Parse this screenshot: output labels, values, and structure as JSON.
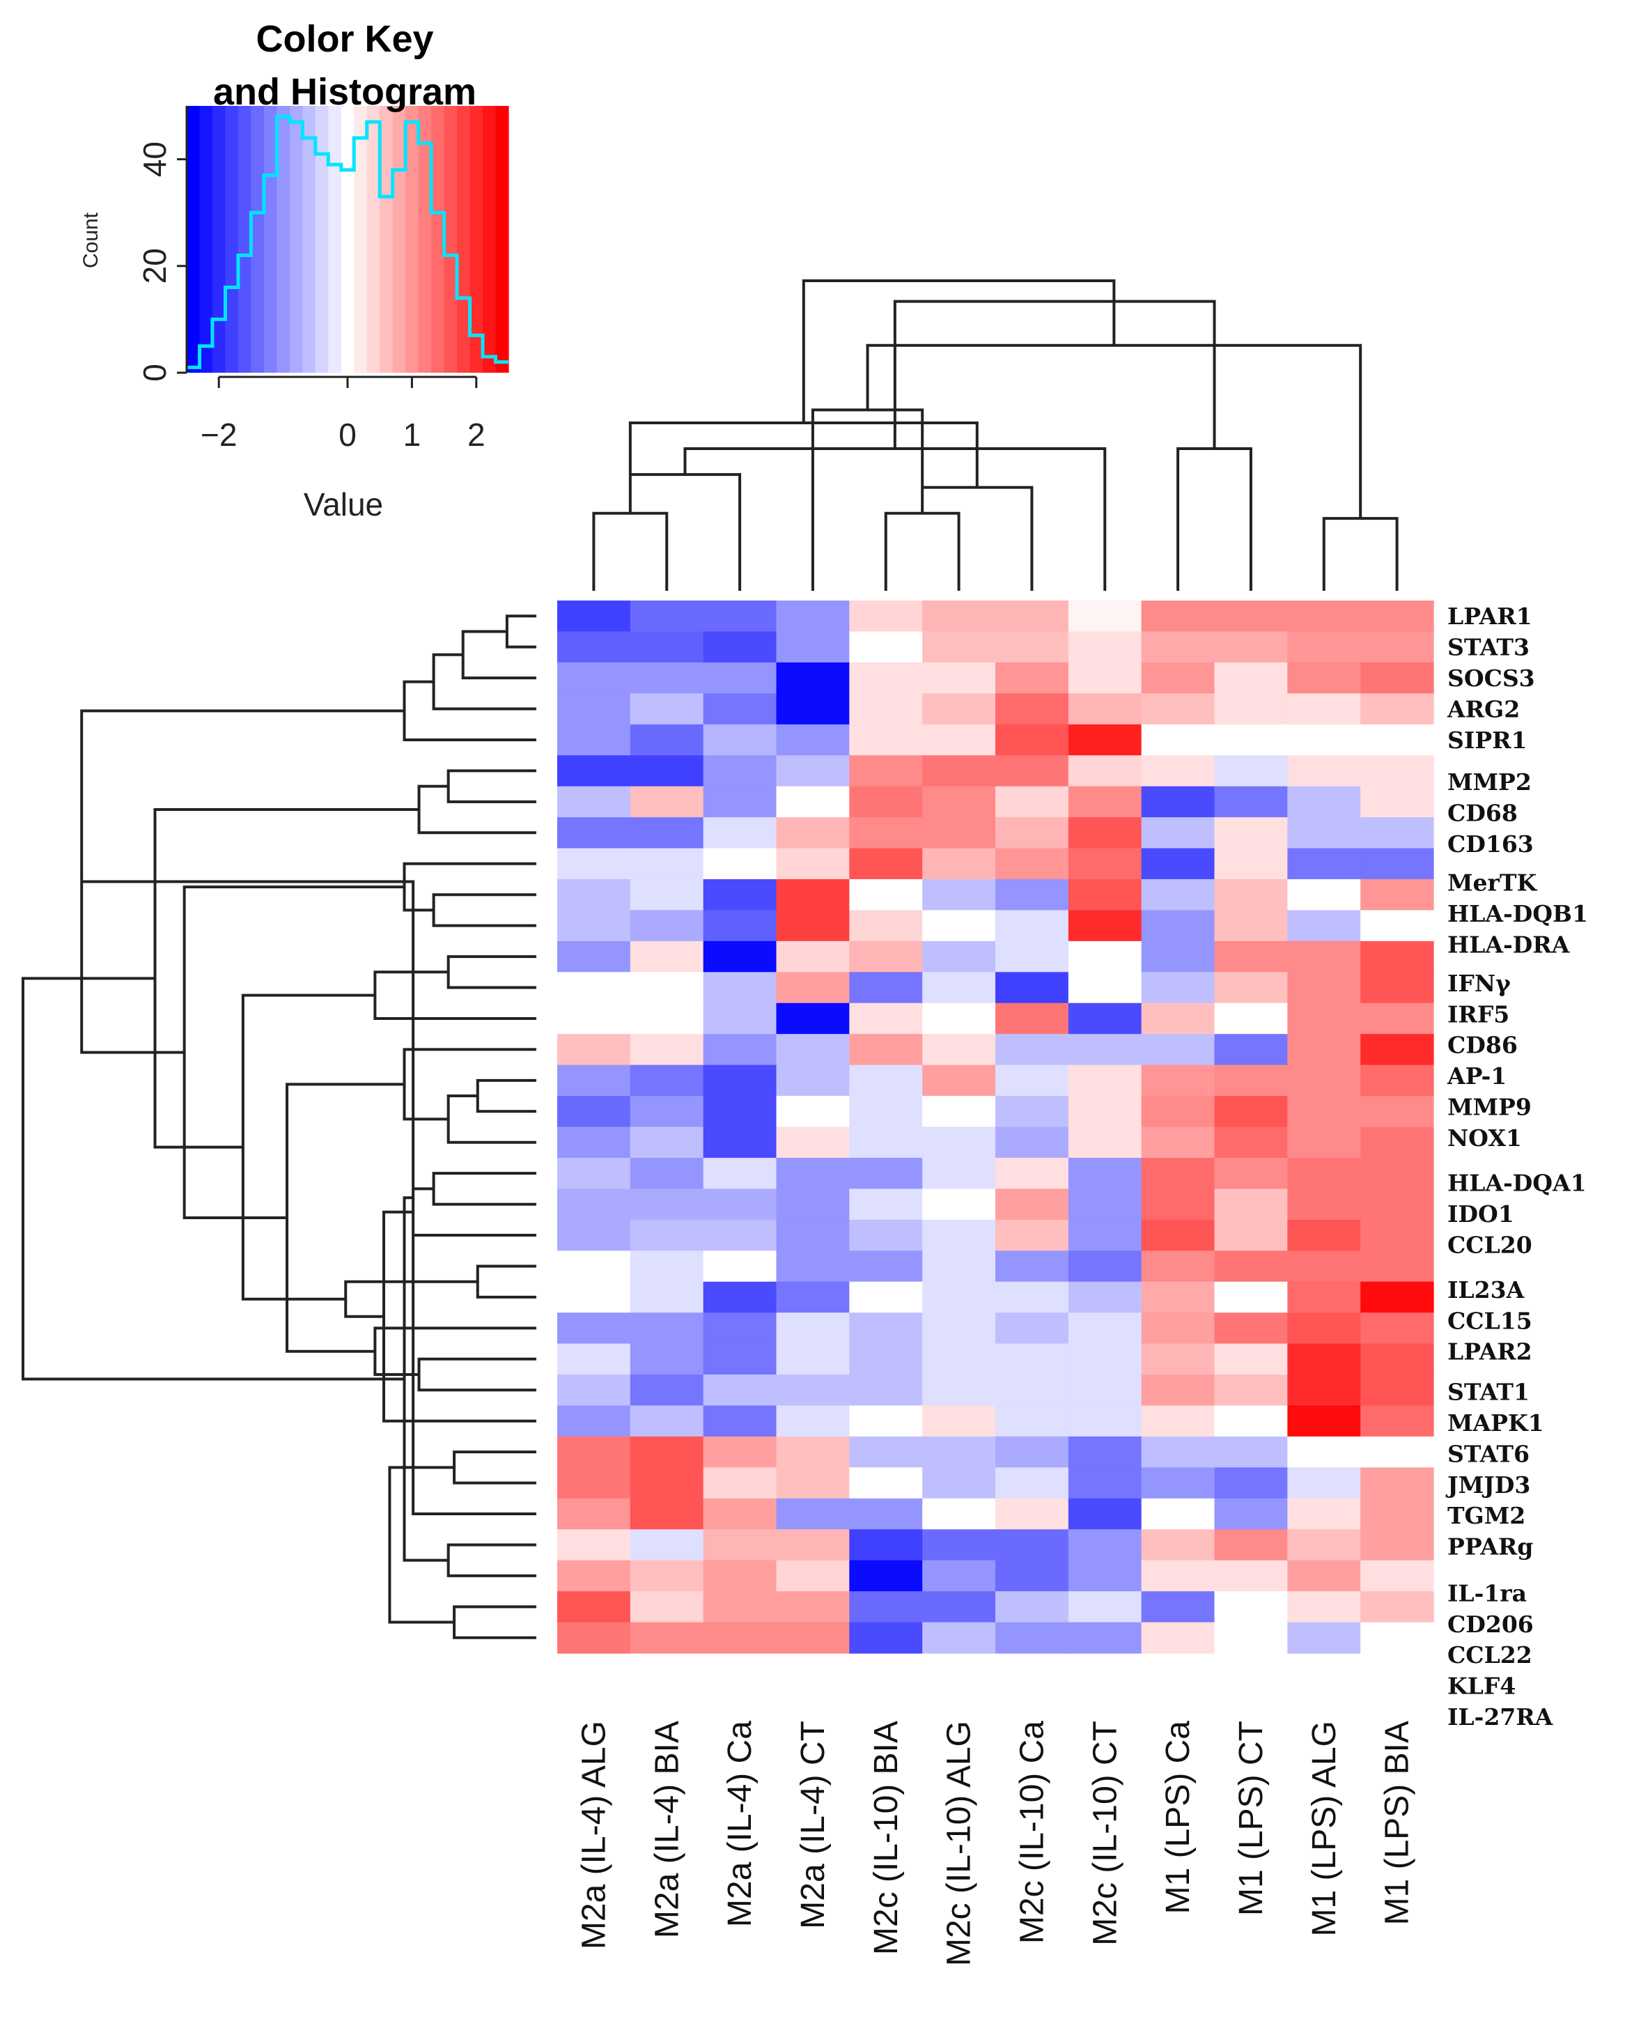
{
  "chart_data": {
    "type": "heatmap",
    "color_key": {
      "title_line1": "Color Key",
      "title_line2": "and Histogram",
      "xlabel": "Value",
      "ylabel": "Count",
      "xticks": [
        "−2",
        "0",
        "1",
        "2"
      ],
      "xtick_values": [
        -2,
        0,
        1,
        2
      ],
      "yticks": [
        "0",
        "20",
        "40"
      ],
      "ytick_values": [
        0,
        20,
        40
      ],
      "xlim": [
        -2.5,
        2.5
      ],
      "ylim": [
        0,
        50
      ],
      "histogram": {
        "bin_edges": [
          -2.5,
          -2.3,
          -2.1,
          -1.9,
          -1.7,
          -1.5,
          -1.3,
          -1.1,
          -0.9,
          -0.7,
          -0.5,
          -0.3,
          -0.1,
          0.1,
          0.3,
          0.5,
          0.7,
          0.9,
          1.1,
          1.3,
          1.5,
          1.7,
          1.9,
          2.1,
          2.3,
          2.5
        ],
        "counts": [
          1,
          5,
          10,
          16,
          22,
          30,
          37,
          48,
          47,
          44,
          41,
          39,
          38,
          44,
          47,
          33,
          38,
          47,
          43,
          30,
          22,
          14,
          7,
          3,
          2
        ]
      },
      "colors": {
        "low": "#0000ff",
        "mid": "#ffffff",
        "high": "#ff0000",
        "histogram_line": "#00e5ff"
      }
    },
    "samples": [
      "M2a (IL-4) ALG",
      "M2a (IL-4) BIA",
      "M2a (IL-4) Ca",
      "M2a (IL-4) CT",
      "M2c (IL-10) BIA",
      "M2c (IL-10) ALG",
      "M2c (IL-10) Ca",
      "M2c (IL-10) CT",
      "M1 (LPS) Ca",
      "M1 (LPS) CT",
      "M1 (LPS) ALG",
      "M1 (LPS) BIA"
    ],
    "genes": [
      "LPAR1",
      "STAT3",
      "SOCS3",
      "ARG2",
      "SIPR1",
      "MMP2",
      "CD68",
      "CD163",
      "MerTK",
      "HLA-DQB1",
      "HLA-DRA",
      "IFNγ",
      "IRF5",
      "CD86",
      "AP-1",
      "MMP9",
      "NOX1",
      "HLA-DQA1",
      "IDO1",
      "CCL20",
      "IL23A",
      "CCL15",
      "LPAR2",
      "STAT1",
      "MAPK1",
      "STAT6",
      "JMJD3",
      "TGM2",
      "PPARg",
      "IL-1ra",
      "CD206",
      "CCL22",
      "KLF4",
      "IL-27RA"
    ],
    "values": [
      [
        -1.8,
        -1.4,
        -1.4,
        -1.0,
        0.4,
        0.7,
        0.7,
        0.1,
        1.1,
        1.1,
        1.1,
        1.1
      ],
      [
        -1.5,
        -1.5,
        -1.7,
        -1.0,
        0.0,
        0.6,
        0.6,
        0.3,
        0.8,
        0.8,
        1.0,
        1.0
      ],
      [
        -1.0,
        -1.0,
        -1.0,
        -2.3,
        0.3,
        0.3,
        1.0,
        0.3,
        1.0,
        0.3,
        1.1,
        1.3
      ],
      [
        -1.0,
        -0.6,
        -1.3,
        -2.3,
        0.3,
        0.6,
        1.4,
        0.7,
        0.6,
        0.3,
        0.3,
        0.6
      ],
      [
        -1.0,
        -1.4,
        -0.7,
        -1.0,
        0.3,
        0.3,
        1.6,
        2.1,
        0.0,
        0.0,
        0.0,
        0.0
      ],
      [
        -1.8,
        -1.8,
        -1.0,
        -0.6,
        1.1,
        1.3,
        1.3,
        0.4,
        0.3,
        -0.3,
        0.3,
        0.3
      ],
      [
        -0.6,
        0.6,
        -1.0,
        0.0,
        1.3,
        1.1,
        0.4,
        1.1,
        -1.7,
        -1.3,
        -0.6,
        0.3
      ],
      [
        -1.3,
        -1.3,
        -0.3,
        0.7,
        1.1,
        1.1,
        0.7,
        1.6,
        -0.6,
        0.3,
        -0.6,
        -0.6
      ],
      [
        -0.3,
        -0.3,
        0.0,
        0.4,
        1.6,
        0.7,
        1.0,
        1.4,
        -1.7,
        0.3,
        -1.3,
        -1.3
      ],
      [
        -0.6,
        -0.3,
        -1.7,
        1.8,
        0.0,
        -0.6,
        -1.0,
        1.6,
        -0.6,
        0.6,
        0.0,
        1.0
      ],
      [
        -0.6,
        -0.8,
        -1.5,
        1.8,
        0.4,
        0.0,
        -0.3,
        2.0,
        -1.0,
        0.6,
        -0.6,
        0.0
      ],
      [
        -1.0,
        0.3,
        -2.3,
        0.4,
        0.7,
        -0.6,
        -0.3,
        0.0,
        -1.0,
        1.1,
        1.1,
        1.6
      ],
      [
        0.0,
        0.0,
        -0.6,
        0.9,
        -1.3,
        -0.3,
        -1.8,
        0.0,
        -0.6,
        0.6,
        1.1,
        1.6
      ],
      [
        0.0,
        0.0,
        -0.6,
        -2.3,
        0.3,
        0.0,
        1.3,
        -1.7,
        0.6,
        0.0,
        1.1,
        1.1
      ],
      [
        0.6,
        0.3,
        -1.0,
        -0.6,
        0.9,
        0.3,
        -0.6,
        -0.6,
        -0.6,
        -1.3,
        1.1,
        2.0
      ],
      [
        -1.0,
        -1.3,
        -1.7,
        -0.6,
        -0.3,
        0.9,
        -0.3,
        0.3,
        1.0,
        1.1,
        1.1,
        1.4
      ],
      [
        -1.4,
        -1.0,
        -1.7,
        0.0,
        -0.3,
        0.0,
        -0.6,
        0.3,
        1.1,
        1.6,
        1.1,
        1.1
      ],
      [
        -1.0,
        -0.6,
        -1.7,
        0.3,
        -0.3,
        -0.3,
        -0.8,
        0.3,
        0.9,
        1.4,
        1.1,
        1.3
      ],
      [
        -0.6,
        -1.0,
        -0.3,
        -1.0,
        -1.0,
        -0.3,
        0.3,
        -1.0,
        1.4,
        1.1,
        1.3,
        1.3
      ],
      [
        -0.8,
        -0.8,
        -0.8,
        -1.0,
        -0.3,
        0.0,
        0.9,
        -1.0,
        1.4,
        0.6,
        1.3,
        1.3
      ],
      [
        -0.8,
        -0.6,
        -0.6,
        -1.0,
        -0.6,
        -0.3,
        0.6,
        -1.0,
        1.6,
        0.6,
        1.6,
        1.3
      ],
      [
        0.0,
        -0.3,
        0.0,
        -1.0,
        -1.0,
        -0.3,
        -1.0,
        -1.3,
        1.1,
        1.3,
        1.3,
        1.3
      ],
      [
        0.0,
        -0.3,
        -1.7,
        -1.3,
        0.0,
        -0.3,
        -0.3,
        -0.6,
        0.8,
        0.0,
        1.4,
        2.3
      ],
      [
        -1.0,
        -1.0,
        -1.3,
        -0.3,
        -0.6,
        -0.3,
        -0.6,
        -0.3,
        0.9,
        1.3,
        1.6,
        1.4
      ],
      [
        -0.3,
        -1.0,
        -1.3,
        -0.3,
        -0.6,
        -0.3,
        -0.3,
        -0.3,
        0.7,
        0.3,
        2.0,
        1.6
      ],
      [
        -0.6,
        -1.3,
        -0.6,
        -0.6,
        -0.6,
        -0.3,
        -0.3,
        -0.3,
        0.9,
        0.6,
        2.0,
        1.6
      ],
      [
        -1.0,
        -0.6,
        -1.3,
        -0.3,
        0.0,
        0.3,
        -0.3,
        -0.3,
        0.3,
        0.0,
        2.3,
        1.4
      ],
      [
        1.3,
        1.6,
        0.9,
        0.6,
        -0.6,
        -0.6,
        -0.8,
        -1.3,
        -0.6,
        -0.6,
        0.0,
        0.0
      ],
      [
        1.3,
        1.6,
        0.4,
        0.6,
        0.0,
        -0.6,
        -0.3,
        -1.3,
        -1.0,
        -1.3,
        -0.3,
        0.9
      ],
      [
        1.0,
        1.6,
        0.9,
        -1.0,
        -1.0,
        0.0,
        0.3,
        -1.7,
        0.0,
        -1.0,
        0.3,
        0.9
      ],
      [
        0.3,
        -0.3,
        0.7,
        0.7,
        -1.8,
        -1.4,
        -1.4,
        -1.0,
        0.6,
        1.1,
        0.6,
        0.9
      ],
      [
        0.9,
        0.6,
        0.9,
        0.4,
        -2.3,
        -1.0,
        -1.4,
        -1.0,
        0.3,
        0.3,
        0.9,
        0.3
      ],
      [
        1.6,
        0.4,
        0.9,
        0.9,
        -1.4,
        -1.4,
        -0.6,
        -0.3,
        -1.3,
        0.0,
        0.3,
        0.6
      ],
      [
        1.3,
        1.1,
        1.1,
        1.1,
        -1.7,
        -0.6,
        -1.0,
        -1.0,
        0.3,
        0.0,
        -0.6,
        0.0
      ]
    ],
    "gene_label_row_offsets": [
      0,
      0,
      0,
      0,
      0,
      0.35,
      0.35,
      0.35,
      0.6,
      0.6,
      0.6,
      0.85,
      0.85,
      0.85,
      0.85,
      0.85,
      0.85,
      1.3,
      1.3,
      1.3,
      1.75,
      1.75,
      1.75,
      2.05,
      2.05,
      2.05,
      2.05,
      2.05,
      2.05,
      2.55,
      2.55,
      2.55,
      2.55,
      2.55
    ],
    "col_dendrogram": {
      "nodes": [
        [
          0,
          1,
          0.3
        ],
        [
          4,
          5,
          0.3
        ],
        [
          10,
          11,
          0.28
        ],
        [
          12,
          2,
          0.45
        ],
        [
          13,
          3,
          0.7
        ],
        [
          13,
          6,
          0.4
        ],
        [
          15,
          7,
          0.55
        ],
        [
          8,
          9,
          0.55
        ],
        [
          17,
          12,
          0.65
        ],
        [
          14,
          16,
          0.95
        ],
        [
          18,
          19,
          1.12
        ],
        [
          20,
          21,
          1.2
        ]
      ]
    },
    "row_dendrogram": {
      "nodes": [
        [
          0,
          1,
          0.1
        ],
        [
          34,
          2,
          0.25
        ],
        [
          35,
          3,
          0.35
        ],
        [
          36,
          4,
          0.45
        ],
        [
          5,
          6,
          0.3
        ],
        [
          38,
          7,
          0.4
        ],
        [
          9,
          10,
          0.35
        ],
        [
          40,
          8,
          0.45
        ],
        [
          11,
          12,
          0.3
        ],
        [
          42,
          13,
          0.55
        ],
        [
          15,
          16,
          0.2
        ],
        [
          44,
          17,
          0.3
        ],
        [
          45,
          14,
          0.45
        ],
        [
          18,
          19,
          0.35
        ],
        [
          21,
          22,
          0.2
        ],
        [
          47,
          20,
          0.42
        ],
        [
          24,
          25,
          0.4
        ],
        [
          49,
          26,
          0.52
        ],
        [
          50,
          23,
          0.55
        ],
        [
          48,
          51,
          0.65
        ],
        [
          52,
          46,
          0.85
        ],
        [
          53,
          43,
          1.0
        ],
        [
          54,
          41,
          1.2
        ],
        [
          55,
          39,
          1.3
        ],
        [
          56,
          37,
          1.55
        ],
        [
          27,
          28,
          0.28
        ],
        [
          58,
          29,
          0.42
        ],
        [
          30,
          31,
          0.3
        ],
        [
          32,
          33,
          0.28
        ],
        [
          60,
          61,
          0.45
        ],
        [
          59,
          62,
          0.5
        ],
        [
          63,
          57,
          1.75
        ]
      ]
    }
  }
}
